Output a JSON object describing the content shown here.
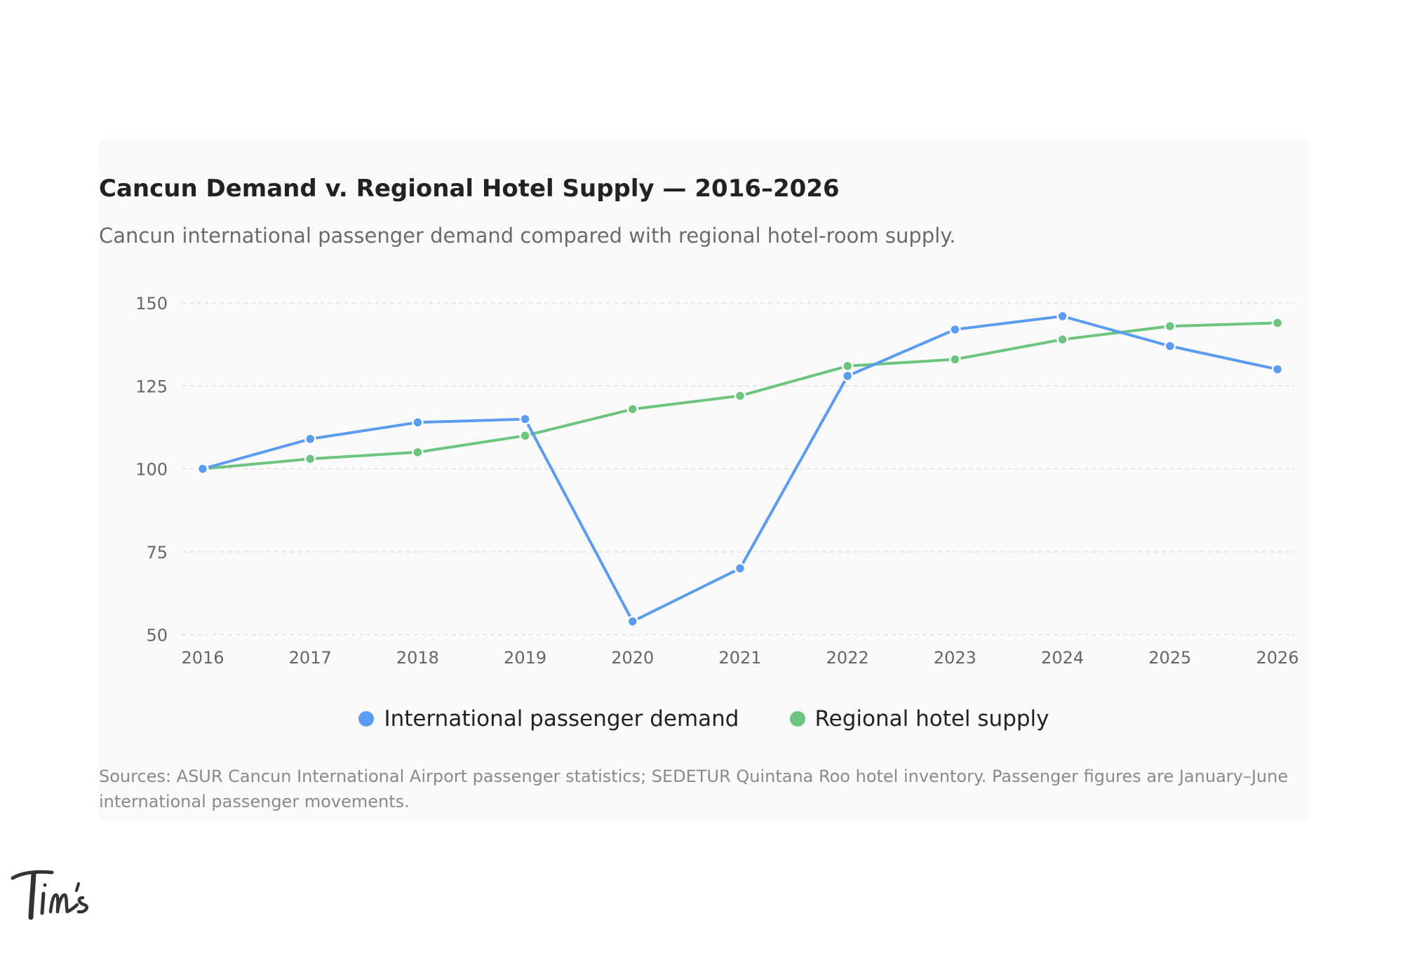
{
  "title": "Cancun Demand v. Regional Hotel Supply — 2016–2026",
  "subtitle": "Cancun international passenger demand compared with regional hotel-room supply.",
  "source": "Sources: ASUR Cancun International Airport passenger statistics; SEDETUR Quintana Roo hotel inventory. Passenger figures are January–June international passenger movements.",
  "logo_text": "Tim's",
  "chart_data": {
    "type": "line",
    "title": "Cancun Demand v. Regional Hotel Supply — 2016–2026",
    "subtitle": "Cancun international passenger demand compared with regional hotel-room supply.",
    "xlabel": "",
    "ylabel": "",
    "x": [
      "2016",
      "2017",
      "2018",
      "2019",
      "2020",
      "2021",
      "2022",
      "2023",
      "2024",
      "2025",
      "2026"
    ],
    "ylim": [
      50,
      150
    ],
    "yticks": [
      50,
      75,
      100,
      125,
      150
    ],
    "grid": "horizontal dashed",
    "legend": "bottom-center",
    "series": [
      {
        "name": "International passenger demand",
        "color": "#5b9bf0",
        "values": [
          100,
          109,
          114,
          115,
          54,
          70,
          128,
          142,
          146,
          137,
          130
        ]
      },
      {
        "name": "Regional hotel supply",
        "color": "#6cc47f",
        "values": [
          100,
          103,
          105,
          110,
          118,
          122,
          131,
          133,
          139,
          143,
          144
        ]
      }
    ]
  }
}
